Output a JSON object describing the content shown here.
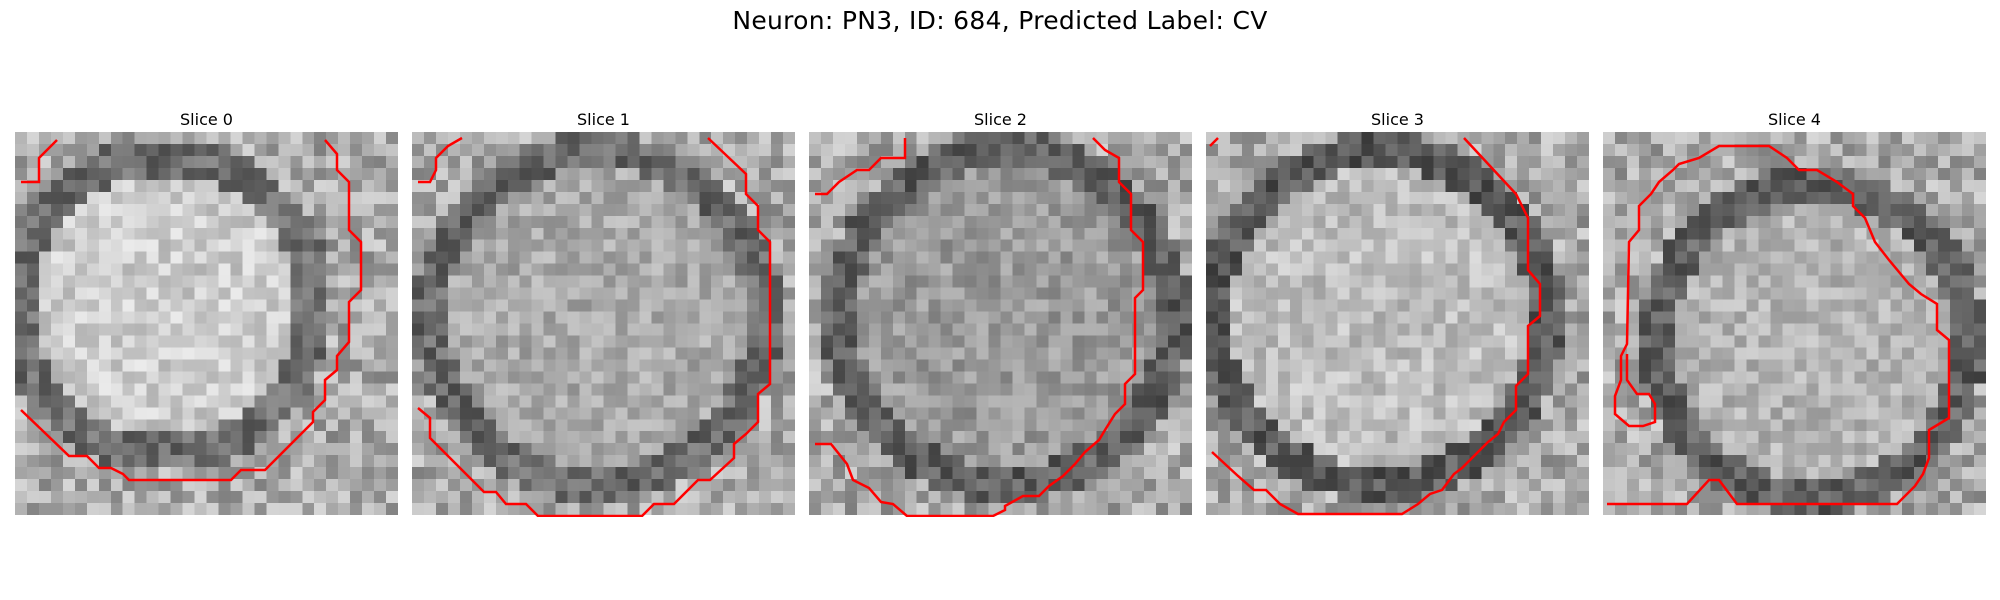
{
  "title": "Neuron: PN3, ID: 684, Predicted Label: CV",
  "panels": [
    {
      "title": "Slice 0"
    },
    {
      "title": "Slice 1"
    },
    {
      "title": "Slice 2"
    },
    {
      "title": "Slice 3"
    },
    {
      "title": "Slice 4"
    }
  ],
  "colors": {
    "contour": "#ff0000",
    "background": "#ffffff"
  }
}
